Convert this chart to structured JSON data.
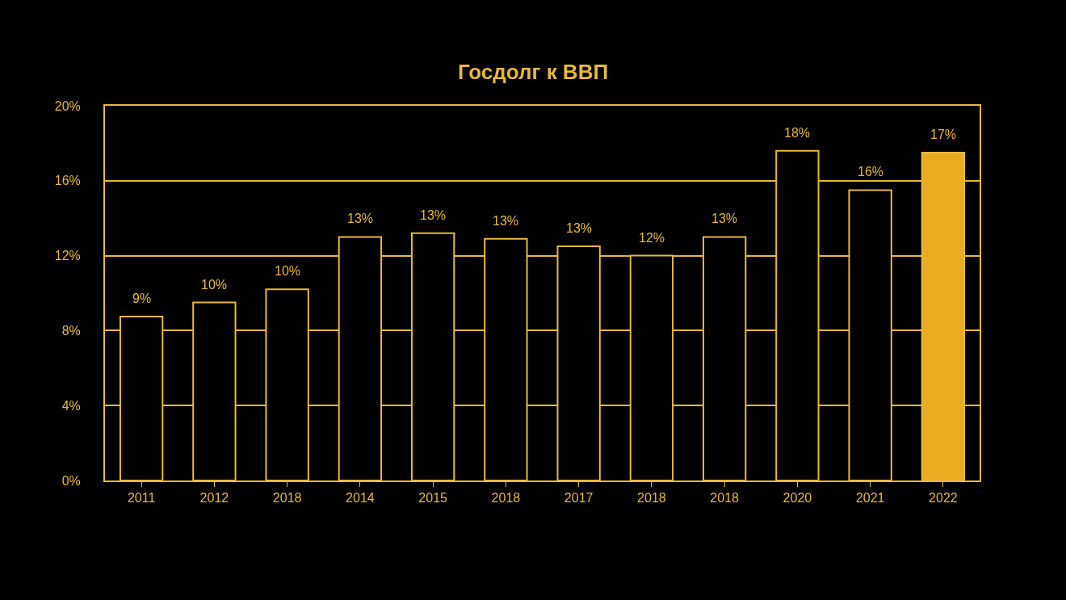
{
  "chart_data": {
    "type": "bar",
    "title": "Госдолг к ВВП",
    "categories": [
      "2011",
      "2012",
      "2018",
      "2014",
      "2015",
      "2018",
      "2017",
      "2018",
      "2018",
      "2020",
      "2021",
      "2022"
    ],
    "values": [
      8.75,
      9.5,
      10.2,
      13.0,
      13.2,
      12.9,
      12.5,
      12.0,
      13.0,
      17.6,
      15.5,
      17.5
    ],
    "value_labels": [
      "9%",
      "10%",
      "10%",
      "13%",
      "13%",
      "13%",
      "13%",
      "12%",
      "13%",
      "18%",
      "16%",
      "17%"
    ],
    "colors": [
      "#000000",
      "#000000",
      "#000000",
      "#000000",
      "#000000",
      "#000000",
      "#000000",
      "#000000",
      "#000000",
      "#000000",
      "#000000",
      "#e8ac22"
    ],
    "ylim": [
      0,
      20
    ],
    "yticks": [
      {
        "value": 0,
        "label": "0%"
      },
      {
        "value": 4,
        "label": "4%"
      },
      {
        "value": 8,
        "label": "8%"
      },
      {
        "value": 12,
        "label": "12%"
      },
      {
        "value": 16,
        "label": "16%"
      },
      {
        "value": 20,
        "label": "20%"
      }
    ],
    "grid": "y"
  }
}
